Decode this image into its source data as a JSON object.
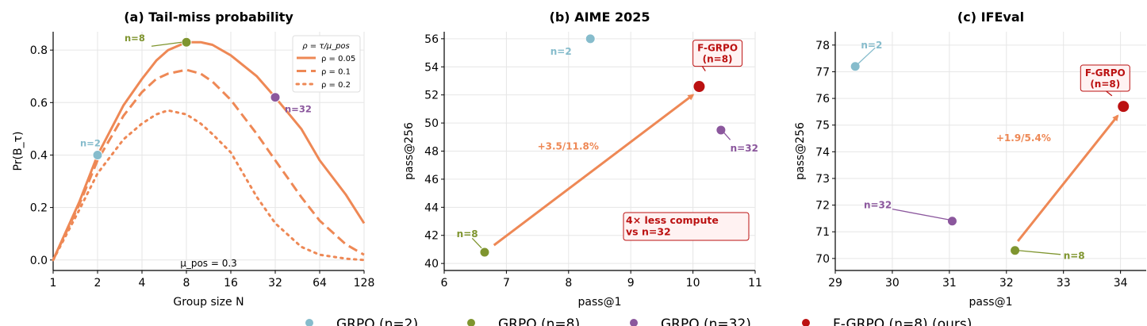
{
  "colors": {
    "curve": "#ee8855",
    "n2": "#86bccc",
    "n8": "#7f952f",
    "n32": "#8b579d",
    "fgrpo": "#bb1111",
    "grid": "#e6e6e6"
  },
  "chart_data": [
    {
      "type": "line",
      "title": "(a) Tail-miss probability",
      "xlabel": "Group size N",
      "ylabel": "Pr(B_τ)",
      "xscale": "log2",
      "xlim": [
        1,
        128
      ],
      "ylim": [
        -0.04,
        0.87
      ],
      "xticks": [
        "1",
        "2",
        "4",
        "8",
        "16",
        "32",
        "64",
        "128"
      ],
      "yticks": [
        "0.0",
        "0.2",
        "0.4",
        "0.6",
        "0.8"
      ],
      "legend": {
        "title": "ρ = τ/μ_pos",
        "placement": "top-right"
      },
      "annotation": "μ_pos = 0.3",
      "series": [
        {
          "name": "ρ = 0.05",
          "style": "solid",
          "x": [
            1,
            1.5,
            2,
            3,
            4,
            5,
            6,
            8,
            10,
            12,
            16,
            24,
            32,
            48,
            64,
            96,
            128
          ],
          "y": [
            0,
            0.22,
            0.4,
            0.59,
            0.69,
            0.76,
            0.8,
            0.83,
            0.83,
            0.82,
            0.78,
            0.7,
            0.62,
            0.5,
            0.38,
            0.25,
            0.14
          ]
        },
        {
          "name": "ρ = 0.1",
          "style": "dashed",
          "x": [
            1,
            1.5,
            2,
            3,
            4,
            5,
            6,
            8,
            10,
            12,
            16,
            24,
            32,
            48,
            64,
            96,
            128
          ],
          "y": [
            0,
            0.21,
            0.38,
            0.55,
            0.64,
            0.69,
            0.71,
            0.725,
            0.71,
            0.68,
            0.61,
            0.48,
            0.38,
            0.24,
            0.15,
            0.06,
            0.02
          ]
        },
        {
          "name": "ρ = 0.2",
          "style": "dotted",
          "x": [
            1,
            1.5,
            2,
            3,
            4,
            5,
            6,
            8,
            10,
            12,
            16,
            24,
            32,
            48,
            64,
            96,
            128
          ],
          "y": [
            0,
            0.19,
            0.33,
            0.46,
            0.52,
            0.555,
            0.57,
            0.555,
            0.52,
            0.48,
            0.41,
            0.24,
            0.14,
            0.05,
            0.02,
            0.005,
            0.0
          ]
        }
      ],
      "points": [
        {
          "label": "n=2",
          "x": 2,
          "y": 0.4,
          "color": "n2"
        },
        {
          "label": "n=8",
          "x": 8,
          "y": 0.83,
          "color": "n8"
        },
        {
          "label": "n=32",
          "x": 32,
          "y": 0.62,
          "color": "n32"
        }
      ]
    },
    {
      "type": "scatter",
      "title": "(b) AIME 2025",
      "xlabel": "pass@1",
      "ylabel": "pass@256",
      "xlim": [
        6,
        11
      ],
      "ylim": [
        39.5,
        56.5
      ],
      "xticks": [
        6,
        7,
        8,
        9,
        10,
        11
      ],
      "yticks": [
        40,
        42,
        44,
        46,
        48,
        50,
        52,
        54,
        56
      ],
      "points": [
        {
          "label": "n=2",
          "x": 8.35,
          "y": 56.0,
          "color": "n2"
        },
        {
          "label": "n=8",
          "x": 6.65,
          "y": 40.8,
          "color": "n8"
        },
        {
          "label": "n=32",
          "x": 10.45,
          "y": 49.5,
          "color": "n32"
        },
        {
          "label": "F-GRPO\n(n=8)",
          "x": 10.1,
          "y": 52.6,
          "color": "fgrpo"
        }
      ],
      "arrow": {
        "from": [
          6.8,
          41.3
        ],
        "to": [
          10.0,
          52.0
        ],
        "label": "+3.5/11.8%"
      },
      "note": "4× less compute\nvs n=32"
    },
    {
      "type": "scatter",
      "title": "(c) IFEval",
      "xlabel": "pass@1",
      "ylabel": "pass@256",
      "xlim": [
        29,
        34.45
      ],
      "ylim": [
        69.55,
        78.5
      ],
      "xticks": [
        29,
        30,
        31,
        32,
        33,
        34
      ],
      "yticks": [
        70,
        71,
        72,
        73,
        74,
        75,
        76,
        77,
        78
      ],
      "points": [
        {
          "label": "n=2",
          "x": 29.35,
          "y": 77.2,
          "color": "n2"
        },
        {
          "label": "n=8",
          "x": 32.15,
          "y": 70.3,
          "color": "n8"
        },
        {
          "label": "n=32",
          "x": 31.05,
          "y": 71.4,
          "color": "n32"
        },
        {
          "label": "F-GRPO\n(n=8)",
          "x": 34.05,
          "y": 75.7,
          "color": "fgrpo"
        }
      ],
      "arrow": {
        "from": [
          32.2,
          70.65
        ],
        "to": [
          33.95,
          75.35
        ],
        "label": "+1.9/5.4%"
      }
    }
  ],
  "legend": [
    {
      "label": "GRPO (n=2)",
      "color": "n2"
    },
    {
      "label": "GRPO (n=8)",
      "color": "n8"
    },
    {
      "label": "GRPO (n=32)",
      "color": "n32"
    },
    {
      "label": "F-GRPO (n=8) (ours)",
      "color": "fgrpo"
    }
  ]
}
